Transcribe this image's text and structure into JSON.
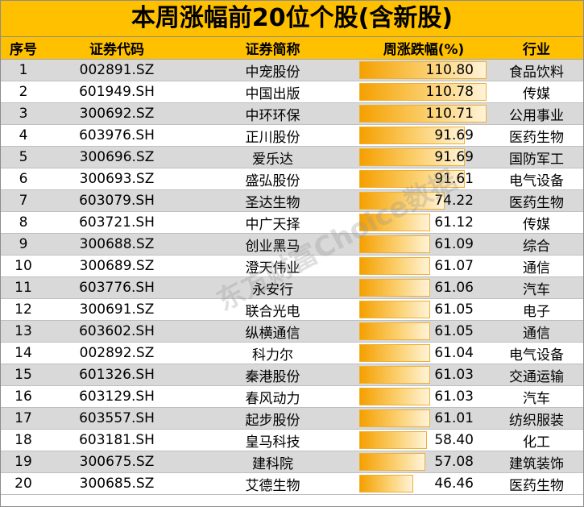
{
  "title": "本周涨幅前20位个股(含新股)",
  "watermark": "东方财富Choice数据",
  "headers": [
    "序号",
    "证券代码",
    "证券简称",
    "周涨跌幅(%)",
    "行业"
  ],
  "bar_max": 110.8,
  "rows": [
    {
      "rank": "1",
      "code": "002891.SZ",
      "name": "中宠股份",
      "change": "110.80",
      "industry": "食品饮料"
    },
    {
      "rank": "2",
      "code": "601949.SH",
      "name": "中国出版",
      "change": "110.78",
      "industry": "传媒"
    },
    {
      "rank": "3",
      "code": "300692.SZ",
      "name": "中环环保",
      "change": "110.71",
      "industry": "公用事业"
    },
    {
      "rank": "4",
      "code": "603976.SH",
      "name": "正川股份",
      "change": "91.69",
      "industry": "医药生物"
    },
    {
      "rank": "5",
      "code": "300696.SZ",
      "name": "爱乐达",
      "change": "91.69",
      "industry": "国防军工"
    },
    {
      "rank": "6",
      "code": "300693.SZ",
      "name": "盛弘股份",
      "change": "91.61",
      "industry": "电气设备"
    },
    {
      "rank": "7",
      "code": "603079.SH",
      "name": "圣达生物",
      "change": "74.22",
      "industry": "医药生物"
    },
    {
      "rank": "8",
      "code": "603721.SH",
      "name": "中广天择",
      "change": "61.12",
      "industry": "传媒"
    },
    {
      "rank": "9",
      "code": "300688.SZ",
      "name": "创业黑马",
      "change": "61.09",
      "industry": "综合"
    },
    {
      "rank": "10",
      "code": "300689.SZ",
      "name": "澄天伟业",
      "change": "61.07",
      "industry": "通信"
    },
    {
      "rank": "11",
      "code": "603776.SH",
      "name": "永安行",
      "change": "61.06",
      "industry": "汽车"
    },
    {
      "rank": "12",
      "code": "300691.SZ",
      "name": "联合光电",
      "change": "61.05",
      "industry": "电子"
    },
    {
      "rank": "13",
      "code": "603602.SH",
      "name": "纵横通信",
      "change": "61.05",
      "industry": "通信"
    },
    {
      "rank": "14",
      "code": "002892.SZ",
      "name": "科力尔",
      "change": "61.04",
      "industry": "电气设备"
    },
    {
      "rank": "15",
      "code": "601326.SH",
      "name": "秦港股份",
      "change": "61.03",
      "industry": "交通运输"
    },
    {
      "rank": "16",
      "code": "603129.SH",
      "name": "春风动力",
      "change": "61.03",
      "industry": "汽车"
    },
    {
      "rank": "17",
      "code": "603557.SH",
      "name": "起步股份",
      "change": "61.01",
      "industry": "纺织服装"
    },
    {
      "rank": "18",
      "code": "603181.SH",
      "name": "皇马科技",
      "change": "58.40",
      "industry": "化工"
    },
    {
      "rank": "19",
      "code": "300675.SZ",
      "name": "建科院",
      "change": "57.08",
      "industry": "建筑装饰"
    },
    {
      "rank": "20",
      "code": "300685.SZ",
      "name": "艾德生物",
      "change": "46.46",
      "industry": "医药生物"
    }
  ]
}
